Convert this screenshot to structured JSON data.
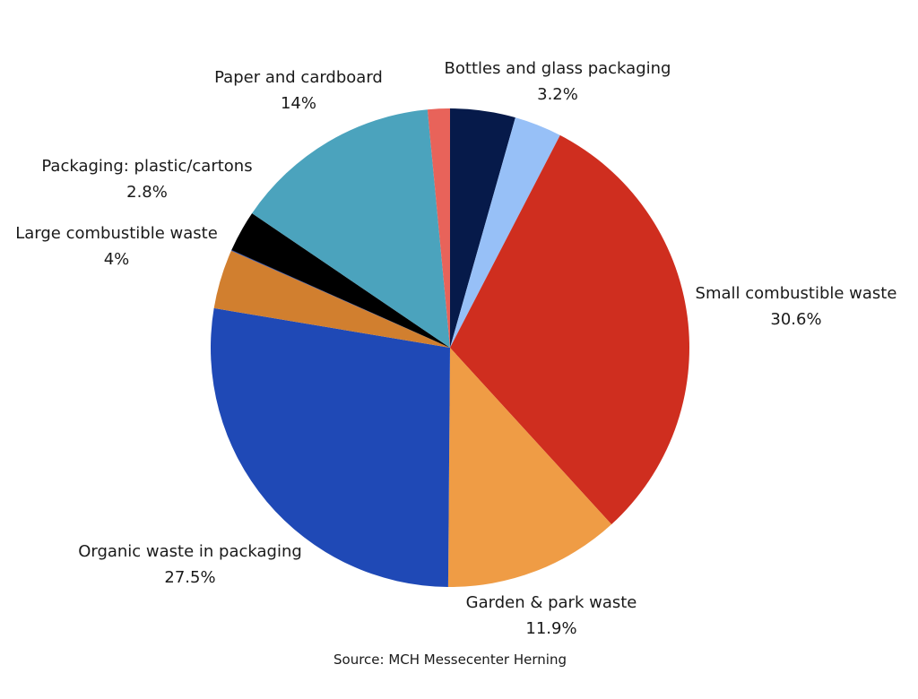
{
  "chart_data": {
    "type": "pie",
    "title": "",
    "slices": [
      {
        "label": "",
        "value": 4.4,
        "value_label": "",
        "color": "#061a4a"
      },
      {
        "label": "Bottles and glass packaging",
        "value": 3.2,
        "value_label": "3.2%",
        "color": "#97c0f7"
      },
      {
        "label": "Small combustible waste",
        "value": 30.6,
        "value_label": "30.6%",
        "color": "#cf2e1f"
      },
      {
        "label": "Garden & park waste",
        "value": 11.9,
        "value_label": "11.9%",
        "color": "#ef9c45"
      },
      {
        "label": "Organic waste in packaging",
        "value": 27.5,
        "value_label": "27.5%",
        "color": "#1f49b6"
      },
      {
        "label": "Large combustible waste",
        "value": 4,
        "value_label": "4%",
        "color": "#d17f2f"
      },
      {
        "label": "",
        "value": 0.05,
        "value_label": "",
        "color": "#1f49b6"
      },
      {
        "label": "Packaging: plastic/cartons",
        "value": 2.8,
        "value_label": "2.8%",
        "color": "#000000"
      },
      {
        "label": "Paper and cardboard",
        "value": 14,
        "value_label": "14%",
        "color": "#4ba3bd"
      },
      {
        "label": "",
        "value": 1.5,
        "value_label": "",
        "color": "#e8635a"
      }
    ],
    "start_angle_deg": 0,
    "direction": "clockwise"
  },
  "source": "Source: MCH Messecenter Herning"
}
